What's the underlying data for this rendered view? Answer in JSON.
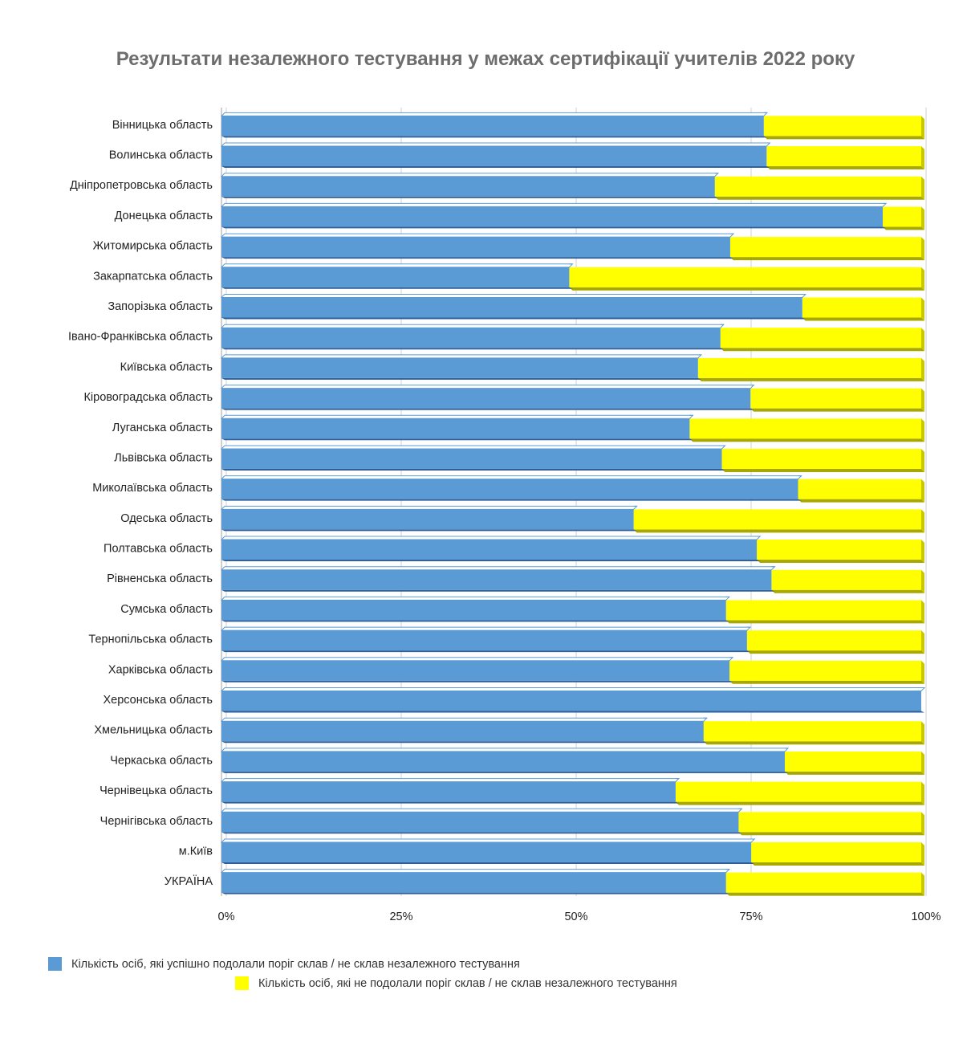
{
  "chart_data": {
    "type": "bar",
    "orientation": "horizontal",
    "stacked": "percent",
    "title": "Результати незалежного тестування у межах сертифікації учителів 2022 року",
    "categories": [
      "Вінницька область",
      "Волинська область",
      "Дніпропетровська область",
      "Донецька область",
      "Житомирська область",
      "Закарпатська область",
      "Запорізька область",
      "Івано-Франківська область",
      "Київська область",
      "Кіровоградська область",
      "Луганська область",
      "Львівська область",
      "Миколаївська область",
      "Одеська область",
      "Полтавська область",
      "Рівненська область",
      "Сумська область",
      "Тернопільська область",
      "Харківська область",
      "Херсонська область",
      "Хмельницька область",
      "Черкаська область",
      "Чернівецька область",
      "Чернігівська область",
      "м.Київ",
      "УКРАЇНА"
    ],
    "series": [
      {
        "name": "Кількість осіб, які успішно подолали поріг склав / не склав незалежного тестування",
        "color": "#5b9bd5",
        "values": [
          77.5,
          77.9,
          70.5,
          94.5,
          72.7,
          49.7,
          83.0,
          71.3,
          68.1,
          75.6,
          66.9,
          71.5,
          82.4,
          58.9,
          76.5,
          78.6,
          72.1,
          75.1,
          72.6,
          100.0,
          68.9,
          80.5,
          64.9,
          73.9,
          75.7,
          72.1
        ]
      },
      {
        "name": "Кількість осіб, які не подолали поріг склав / не склав незалежного тестування",
        "color": "#ffff00",
        "values": [
          22.5,
          22.1,
          29.5,
          5.5,
          27.3,
          50.3,
          17.0,
          28.7,
          31.9,
          24.4,
          33.1,
          28.5,
          17.6,
          41.1,
          23.5,
          21.4,
          27.9,
          24.9,
          27.4,
          0.0,
          31.1,
          19.5,
          35.1,
          26.1,
          24.3,
          27.9
        ]
      }
    ],
    "xlim": [
      0,
      100
    ],
    "x_ticks": [
      "0%",
      "25%",
      "50%",
      "75%",
      "100%"
    ],
    "grid": true,
    "legend_position": "bottom"
  }
}
